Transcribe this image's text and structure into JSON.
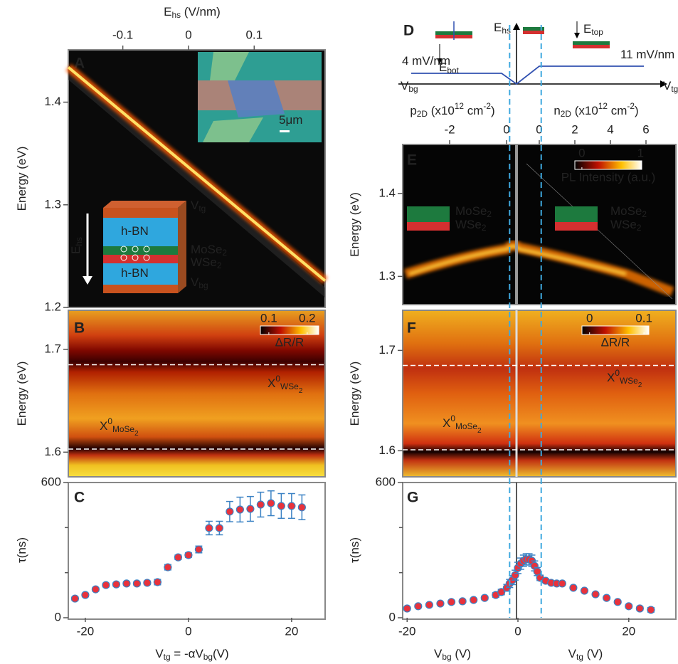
{
  "chart_data": [
    {
      "panel": "A",
      "type": "line",
      "x": [
        -0.183,
        0.208
      ],
      "values": [
        1.434,
        1.226
      ],
      "color": "#ffe066",
      "xlim": [
        -0.183,
        0.208
      ],
      "xticks": [
        -0.1,
        0,
        0.1
      ],
      "x_position": "top",
      "xlabel": [
        {
          "t": "E"
        },
        {
          "t": "hs",
          "s": "sub"
        },
        {
          "t": "  (V/nm)"
        }
      ],
      "ylim": [
        1.2,
        1.451
      ],
      "yticks": [
        1.2,
        1.3,
        1.4
      ],
      "ylabel": [
        {
          "t": "Energy (eV)"
        }
      ],
      "annotations": [
        [
          {
            "t": "5μm"
          }
        ],
        [
          {
            "t": "h-BN"
          }
        ],
        [
          {
            "t": "h-BN"
          }
        ],
        [
          {
            "t": "MoSe"
          },
          {
            "t": "2",
            "s": "sub"
          }
        ],
        [
          {
            "t": "WSe"
          },
          {
            "t": "2",
            "s": "sub"
          }
        ],
        [
          {
            "t": "V"
          },
          {
            "t": "tg",
            "s": "sub"
          }
        ],
        [
          {
            "t": "V"
          },
          {
            "t": "bg",
            "s": "sub"
          }
        ],
        [
          {
            "t": "E"
          },
          {
            "t": "hs",
            "s": "sub"
          }
        ]
      ]
    },
    {
      "panel": "B",
      "type": "heatmap",
      "ylim": [
        1.576,
        1.738
      ],
      "yticks": [
        1.6,
        1.7
      ],
      "ylabel": [
        {
          "t": "Energy (eV)"
        }
      ],
      "hlines": [
        1.685,
        1.603
      ],
      "colorbar": {
        "ticks": [
          0.1,
          0.2
        ],
        "lim": [
          0.078,
          0.23
        ],
        "label": "ΔR/R"
      },
      "annotations": [
        [
          {
            "t": "X"
          },
          {
            "t": "0",
            "s": "sup"
          },
          {
            "t": "WSe",
            "s": "sub"
          },
          {
            "t": "2",
            "s": "sub2"
          }
        ],
        [
          {
            "t": "X"
          },
          {
            "t": "0",
            "s": "sup"
          },
          {
            "t": "MoSe",
            "s": "sub"
          },
          {
            "t": "2",
            "s": "sub2"
          }
        ]
      ]
    },
    {
      "panel": "C",
      "type": "scatter",
      "color": "#e8323c",
      "error_color": "#3b82c4",
      "x": [
        -22,
        -20,
        -18,
        -16,
        -14,
        -12,
        -10,
        -8,
        -6,
        -4,
        -2,
        0,
        2,
        4,
        6,
        8,
        10,
        12,
        14,
        16,
        18,
        20,
        22
      ],
      "values": [
        85,
        101,
        126,
        145,
        148,
        152,
        152,
        155,
        158,
        224,
        268,
        278,
        303,
        398,
        398,
        471,
        480,
        483,
        502,
        508,
        496,
        496,
        490
      ],
      "errors": [
        8,
        8,
        8,
        8,
        8,
        8,
        8,
        8,
        12,
        12,
        10,
        10,
        15,
        30,
        30,
        45,
        55,
        55,
        55,
        55,
        55,
        55,
        55
      ],
      "xlim": [
        -23.3,
        26.5
      ],
      "xticks": [
        -20,
        0,
        20
      ],
      "ylim": [
        0,
        600
      ],
      "yticks": [
        0,
        600
      ],
      "yminor": [
        200,
        400
      ],
      "xlabels": [
        [
          {
            "t": "V"
          },
          {
            "t": "tg",
            "s": "sub"
          },
          {
            "t": " = -αV"
          },
          {
            "t": "bg",
            "s": "sub"
          },
          {
            "t": "(V)"
          }
        ]
      ],
      "ylabel": [
        {
          "t": "τ(ns)"
        }
      ]
    },
    {
      "panel": "D",
      "type": "diagram",
      "annotations": [
        [
          {
            "t": "E"
          },
          {
            "t": "hs",
            "s": "sub"
          }
        ],
        [
          {
            "t": "V"
          },
          {
            "t": "bg",
            "s": "sub"
          }
        ],
        [
          {
            "t": "V"
          },
          {
            "t": "tg",
            "s": "sub"
          }
        ],
        [
          {
            "t": "4 mV/nm"
          }
        ],
        [
          {
            "t": "11 mV/nm"
          }
        ],
        [
          {
            "t": "E"
          },
          {
            "t": "bot",
            "s": "sub"
          }
        ],
        [
          {
            "t": "E"
          },
          {
            "t": "top",
            "s": "sub"
          }
        ]
      ]
    },
    {
      "panel": "E",
      "type": "heatmap",
      "xlim": [
        -3.65,
        0.25
      ],
      "xticks": [
        -2,
        0
      ],
      "xlabel": [
        {
          "t": "p"
        },
        {
          "t": "2D",
          "s": "sub"
        },
        {
          "t": " (x10"
        },
        {
          "t": "12",
          "s": "sup"
        },
        {
          "t": " cm"
        },
        {
          "t": "-2",
          "s": "sup"
        },
        {
          "t": ")"
        }
      ],
      "x2lim": [
        -1.12,
        7.68
      ],
      "x2ticks": [
        0,
        2,
        4,
        6
      ],
      "x2label": [
        {
          "t": "n"
        },
        {
          "t": "2D",
          "s": "sub"
        },
        {
          "t": " (x10"
        },
        {
          "t": "12",
          "s": "sup"
        },
        {
          "t": " cm"
        },
        {
          "t": "-2",
          "s": "sup"
        },
        {
          "t": ")"
        }
      ],
      "ylim": [
        1.266,
        1.459
      ],
      "yticks": [
        1.3,
        1.4
      ],
      "ylabel": [
        {
          "t": "Energy (eV)"
        }
      ],
      "colorbar": {
        "ticks": [
          0,
          1
        ],
        "lim": [
          -0.12,
          1.02
        ],
        "label": "PL Intensity (a.u.)"
      },
      "annotations": [
        [
          {
            "t": "MoSe"
          },
          {
            "t": "2",
            "s": "sub"
          }
        ],
        [
          {
            "t": "WSe"
          },
          {
            "t": "2",
            "s": "sub"
          }
        ],
        [
          {
            "t": "MoSe"
          },
          {
            "t": "2",
            "s": "sub"
          }
        ],
        [
          {
            "t": "WSe"
          },
          {
            "t": "2",
            "s": "sub"
          }
        ]
      ]
    },
    {
      "panel": "F",
      "type": "heatmap",
      "ylim": [
        1.574,
        1.74
      ],
      "yticks": [
        1.6,
        1.7
      ],
      "ylabel": [
        {
          "t": "Energy (eV)"
        }
      ],
      "hlines": [
        1.685,
        1.601
      ],
      "colorbar": {
        "ticks": [
          0,
          0.1
        ],
        "lim": [
          -0.014,
          0.109
        ],
        "label": "ΔR/R"
      },
      "annotations": [
        [
          {
            "t": "X"
          },
          {
            "t": "0",
            "s": "sup"
          },
          {
            "t": "MoSe",
            "s": "sub"
          },
          {
            "t": "2",
            "s": "sub2"
          }
        ],
        [
          {
            "t": "X"
          },
          {
            "t": "0",
            "s": "sup"
          },
          {
            "t": "WSe",
            "s": "sub"
          },
          {
            "t": "2",
            "s": "sub2"
          }
        ]
      ]
    },
    {
      "panel": "G",
      "type": "scatter",
      "color": "#e8323c",
      "error_color": "#3b82c4",
      "x": [
        -20,
        -18,
        -16,
        -14,
        -12,
        -10,
        -8,
        -6,
        -4,
        -3,
        -2,
        -1.5,
        -1,
        -0.5,
        0,
        0.5,
        1,
        1.5,
        2,
        2.5,
        3,
        3.5,
        4,
        5,
        6,
        7,
        8,
        10,
        12,
        14,
        16,
        18,
        20,
        22,
        24
      ],
      "values": [
        41,
        51,
        57,
        63,
        70,
        73,
        79,
        88,
        101,
        114,
        133,
        152,
        167,
        189,
        221,
        240,
        253,
        259,
        259,
        253,
        230,
        205,
        177,
        164,
        155,
        152,
        152,
        133,
        120,
        104,
        88,
        70,
        51,
        41,
        35
      ],
      "errors": [
        6,
        6,
        6,
        6,
        6,
        6,
        6,
        8,
        10,
        12,
        15,
        18,
        20,
        22,
        25,
        25,
        25,
        25,
        25,
        25,
        22,
        18,
        12,
        8,
        6,
        6,
        6,
        6,
        6,
        6,
        6,
        6,
        8,
        8,
        10
      ],
      "xlim": [
        -20.8,
        28.5
      ],
      "xticks": [
        -20,
        0,
        20
      ],
      "ylim": [
        0,
        600
      ],
      "yticks": [
        0,
        600
      ],
      "yminor": [
        200,
        400
      ],
      "xlabels": [
        [
          {
            "t": "V"
          },
          {
            "t": "bg",
            "s": "sub"
          },
          {
            "t": " (V)"
          }
        ],
        [
          {
            "t": "V"
          },
          {
            "t": "tg",
            "s": "sub"
          },
          {
            "t": " (V)"
          }
        ]
      ],
      "ylabel": [
        {
          "t": "τ(ns)"
        }
      ],
      "vlines": [
        -1.5,
        4.2
      ]
    }
  ]
}
